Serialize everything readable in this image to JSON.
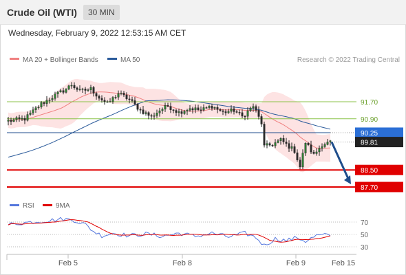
{
  "header": {
    "title": "Crude Oil (WTI)",
    "timeframe": "30 MIN",
    "datetime": "Wednesday, February 9, 2022 12:53:15 AM CET"
  },
  "legend": {
    "ma20": "MA 20 + Bollinger Bands",
    "ma50": "MA 50",
    "copyright": "Research © 2022 Trading Central",
    "rsi": "RSI",
    "rsi_ma": "9MA"
  },
  "colors": {
    "up": "#2e7d32",
    "down": "#c62828",
    "ma20": "#f08080",
    "bollinger": "#fde3e3",
    "ma50": "#2a5a9a",
    "resistance": "#8bc34a",
    "support": "#e00000",
    "current": "#1f4e8c",
    "current_badge": "#2b6fd6",
    "price_badge": "#222222",
    "rsi_line": "#5577dd",
    "rsi_ma_line": "#e00000"
  },
  "levels": {
    "resistance": [
      {
        "value": 91.7,
        "label": "91.70"
      },
      {
        "value": 90.9,
        "label": "90.90"
      }
    ],
    "pivot": {
      "value": 90.25,
      "label": "90.25"
    },
    "last_price": {
      "value": 89.81,
      "label": "89.81"
    },
    "support": [
      {
        "value": 88.5,
        "label": "88.50"
      },
      {
        "value": 87.7,
        "label": "87.70"
      }
    ]
  },
  "chart_data": [
    {
      "type": "candlestick",
      "title": "Crude Oil (WTI)",
      "timeframe": "30 MIN",
      "y_range": [
        87.55,
        93.5
      ],
      "x_ticks": [
        "Feb 5",
        "Feb 8",
        "Feb 9",
        "Feb 15"
      ],
      "anchor_points": [
        {
          "bar": 0,
          "close": 90.8
        },
        {
          "bar": 6,
          "close": 90.9
        },
        {
          "bar": 12,
          "close": 91.6
        },
        {
          "bar": 17,
          "close": 92.0
        },
        {
          "bar": 21,
          "close": 92.3
        },
        {
          "bar": 23,
          "close": 92.5
        },
        {
          "bar": 26,
          "close": 92.2
        },
        {
          "bar": 30,
          "close": 92.3
        },
        {
          "bar": 33,
          "close": 91.9
        },
        {
          "bar": 36,
          "close": 91.6
        },
        {
          "bar": 40,
          "close": 92.1
        },
        {
          "bar": 44,
          "close": 91.8
        },
        {
          "bar": 48,
          "close": 91.3
        },
        {
          "bar": 52,
          "close": 91.0
        },
        {
          "bar": 55,
          "close": 91.3
        },
        {
          "bar": 58,
          "close": 91.5
        },
        {
          "bar": 62,
          "close": 91.2
        },
        {
          "bar": 66,
          "close": 91.4
        },
        {
          "bar": 70,
          "close": 91.3
        },
        {
          "bar": 74,
          "close": 91.5
        },
        {
          "bar": 78,
          "close": 91.2
        },
        {
          "bar": 82,
          "close": 91.3
        },
        {
          "bar": 85,
          "close": 91.0
        },
        {
          "bar": 89,
          "close": 91.5
        },
        {
          "bar": 92,
          "close": 90.7
        },
        {
          "bar": 93,
          "close": 89.6
        },
        {
          "bar": 96,
          "close": 89.7
        },
        {
          "bar": 99,
          "close": 89.9
        },
        {
          "bar": 102,
          "close": 89.6
        },
        {
          "bar": 104,
          "close": 89.4
        },
        {
          "bar": 106,
          "close": 88.65
        },
        {
          "bar": 108,
          "close": 89.8
        },
        {
          "bar": 111,
          "close": 89.2
        },
        {
          "bar": 114,
          "close": 89.7
        },
        {
          "bar": 117,
          "close": 89.8
        }
      ],
      "moving_averages": [
        "MA 20",
        "MA 50"
      ],
      "bollinger_bands": true,
      "forecast": {
        "from": 89.81,
        "to": 87.7
      }
    },
    {
      "type": "line",
      "title": "RSI",
      "series": [
        {
          "name": "RSI"
        },
        {
          "name": "9MA"
        }
      ],
      "y_range": [
        20,
        80
      ],
      "y_ticks": [
        70,
        50,
        30
      ],
      "anchor_points": [
        {
          "bar": 0,
          "rsi": 66
        },
        {
          "bar": 8,
          "rsi": 70
        },
        {
          "bar": 14,
          "rsi": 72
        },
        {
          "bar": 20,
          "rsi": 75
        },
        {
          "bar": 24,
          "rsi": 73
        },
        {
          "bar": 28,
          "rsi": 66
        },
        {
          "bar": 31,
          "rsi": 55
        },
        {
          "bar": 34,
          "rsi": 48
        },
        {
          "bar": 38,
          "rsi": 52
        },
        {
          "bar": 44,
          "rsi": 48
        },
        {
          "bar": 50,
          "rsi": 51
        },
        {
          "bar": 56,
          "rsi": 47
        },
        {
          "bar": 62,
          "rsi": 52
        },
        {
          "bar": 68,
          "rsi": 47
        },
        {
          "bar": 74,
          "rsi": 52
        },
        {
          "bar": 80,
          "rsi": 46
        },
        {
          "bar": 86,
          "rsi": 52
        },
        {
          "bar": 90,
          "rsi": 45
        },
        {
          "bar": 93,
          "rsi": 32
        },
        {
          "bar": 97,
          "rsi": 43
        },
        {
          "bar": 101,
          "rsi": 40
        },
        {
          "bar": 105,
          "rsi": 45
        },
        {
          "bar": 108,
          "rsi": 39
        },
        {
          "bar": 112,
          "rsi": 48
        },
        {
          "bar": 117,
          "rsi": 49
        }
      ]
    }
  ]
}
